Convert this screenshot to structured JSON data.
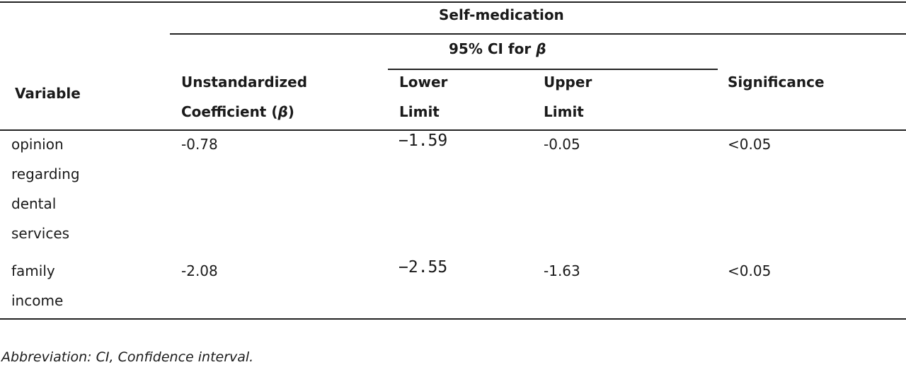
{
  "table": {
    "group_header": "Self-medication",
    "ci_header": "95% CI for",
    "beta_symbol": "β",
    "columns": {
      "variable": "Variable",
      "coef_line1": "Unstandardized",
      "coef_line2": "Coefficient (",
      "coef_line2_end": ")",
      "lower_line1": "Lower",
      "lower_line2": "Limit",
      "upper_line1": "Upper",
      "upper_line2": "Limit",
      "significance": "Significance"
    },
    "rows": [
      {
        "variable_lines": [
          "opinion",
          "regarding",
          "dental",
          "services"
        ],
        "coefficient": "-0.78",
        "lower": "−1.59",
        "upper": "-0.05",
        "significance": "<0.05"
      },
      {
        "variable_lines": [
          "family",
          "income"
        ],
        "coefficient": "-2.08",
        "lower": "−2.55",
        "upper": "-1.63",
        "significance": "<0.05"
      }
    ]
  },
  "footnote": "Abbreviation: CI, Confidence interval."
}
